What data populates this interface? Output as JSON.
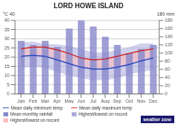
{
  "chart_data": {
    "type": "combo",
    "title": "LORD HOWE ISLAND",
    "categories": [
      "Jan",
      "Feb",
      "Mar",
      "Apr",
      "May",
      "Jun",
      "Jul",
      "Aug",
      "Sep",
      "Oct",
      "Nov",
      "Dec"
    ],
    "series": [
      {
        "name": "Mean daily minimum temp",
        "type": "line",
        "color": "#2244bb",
        "values": [
          20.5,
          21.0,
          20.5,
          18.5,
          16.5,
          14.5,
          13.5,
          13.5,
          14.5,
          16.0,
          18.0,
          19.5
        ]
      },
      {
        "name": "Mean daily maximum temp",
        "type": "line",
        "color": "#cc2222",
        "values": [
          24.5,
          25.5,
          25.5,
          24.0,
          22.0,
          19.5,
          18.5,
          19.0,
          20.5,
          22.0,
          23.5,
          24.5
        ]
      },
      {
        "name": "Mean monthly rainfall",
        "type": "bar",
        "color": "#8888cc",
        "axis": "y2",
        "values": [
          130,
          120,
          130,
          115,
          160,
          180,
          165,
          140,
          120,
          100,
          110,
          120
        ]
      },
      {
        "name": "Highest/lowest on record",
        "type": "band",
        "color": "#aaaadd",
        "values": [
          [
            14.0,
            28.0
          ],
          [
            15.0,
            28.5
          ],
          [
            14.0,
            27.0
          ],
          [
            12.0,
            27.0
          ],
          [
            10.0,
            26.0
          ],
          [
            8.5,
            24.5
          ],
          [
            7.5,
            22.5
          ],
          [
            7.5,
            22.5
          ],
          [
            8.5,
            24.0
          ],
          [
            10.5,
            25.5
          ],
          [
            12.0,
            27.5
          ],
          [
            13.0,
            27.5
          ]
        ]
      },
      {
        "name": "Highest/lowest on record",
        "type": "band",
        "color": "#ffbbbb",
        "values": [
          [
            20.5,
            24.5
          ],
          [
            21.0,
            25.5
          ],
          [
            20.5,
            25.5
          ],
          [
            18.5,
            24.0
          ],
          [
            16.5,
            22.0
          ],
          [
            14.5,
            19.5
          ],
          [
            13.5,
            18.5
          ],
          [
            13.5,
            19.0
          ],
          [
            14.5,
            20.5
          ],
          [
            16.0,
            22.0
          ],
          [
            18.0,
            23.5
          ],
          [
            19.5,
            24.5
          ]
        ]
      }
    ],
    "ylim": [
      0,
      40
    ],
    "yticks": [
      0,
      5,
      10,
      15,
      20,
      25,
      30,
      35,
      40
    ],
    "y2lim": [
      0,
      180
    ],
    "y2ticks": [
      0,
      20,
      40,
      60,
      80,
      100,
      120,
      140,
      160,
      180
    ],
    "grid": true,
    "legend": "bottom",
    "annotations": [
      {
        "text": "°C 40"
      },
      {
        "text": "180 mm"
      },
      {
        "text": "weather zone",
        "color": "#1a1a6e"
      }
    ]
  }
}
